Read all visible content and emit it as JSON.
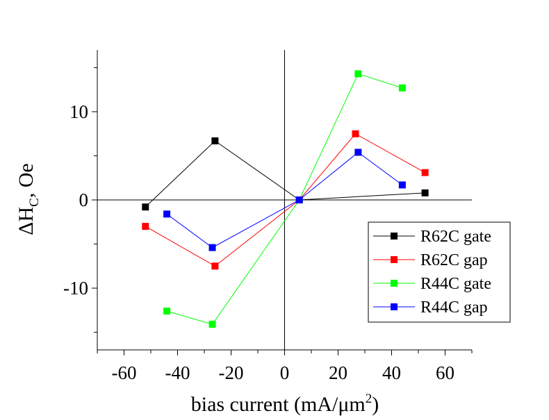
{
  "chart_data": {
    "type": "line",
    "xlabel": "bias current (mA/μm",
    "xlabel_sup": "2",
    "xlabel_close": ")",
    "ylabel_delta": "ΔH",
    "ylabel_sub": "C",
    "ylabel_rest": ", Oe",
    "xlim": [
      -70,
      70
    ],
    "ylim": [
      -17,
      17
    ],
    "xticks": [
      -60,
      -40,
      -20,
      0,
      20,
      40,
      60
    ],
    "yticks": [
      -10,
      0,
      10
    ],
    "grid": false,
    "legend_position": "lower-right",
    "series": [
      {
        "name": "R62C gate",
        "color": "#000000",
        "x": [
          -52,
          -26,
          5.5,
          52.5
        ],
        "y": [
          -0.8,
          6.7,
          0,
          0.8
        ]
      },
      {
        "name": "R62C gap",
        "color": "#ff0000",
        "x": [
          -52,
          -26,
          5.5,
          26.5,
          52.5
        ],
        "y": [
          -3.0,
          -7.5,
          0,
          7.5,
          3.1
        ]
      },
      {
        "name": "R44C gate",
        "color": "#00ff00",
        "x": [
          -44,
          -27,
          5.5,
          27.5,
          44
        ],
        "y": [
          -12.6,
          -14.1,
          0,
          14.3,
          12.7
        ]
      },
      {
        "name": "R44C gap",
        "color": "#0000ff",
        "x": [
          -44,
          -27,
          5.5,
          27.5,
          44
        ],
        "y": [
          -1.6,
          -5.4,
          0,
          5.4,
          1.7
        ]
      }
    ]
  }
}
